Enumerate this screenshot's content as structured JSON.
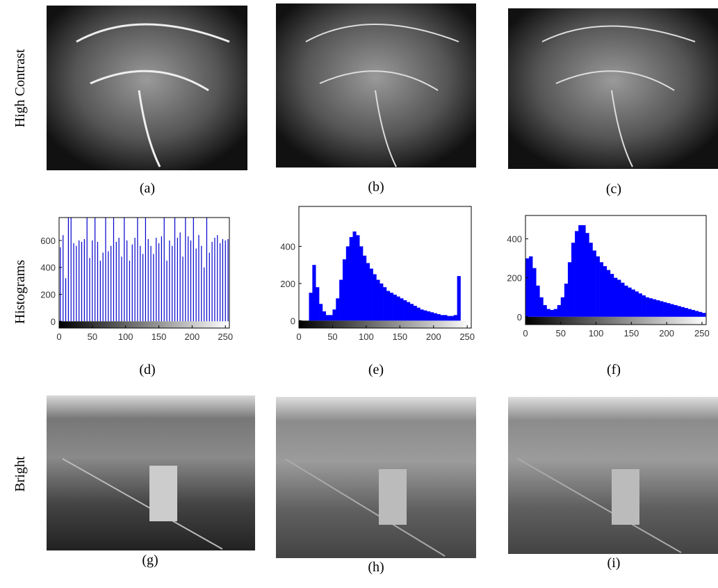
{
  "row_labels": [
    "High Contrast",
    "Histograms",
    "Bright"
  ],
  "captions": [
    "(a)",
    "(b)",
    "(c)",
    "(d)",
    "(e)",
    "(f)",
    "(g)",
    "(h)",
    "(i)"
  ],
  "chart_data": [
    {
      "type": "bar",
      "color": "#0000cc",
      "x": [
        2,
        6,
        10,
        14,
        18,
        22,
        26,
        30,
        34,
        38,
        42,
        46,
        50,
        54,
        58,
        62,
        66,
        70,
        74,
        78,
        82,
        86,
        90,
        94,
        98,
        102,
        106,
        110,
        114,
        118,
        122,
        126,
        130,
        134,
        138,
        142,
        146,
        150,
        154,
        158,
        162,
        166,
        170,
        174,
        178,
        182,
        186,
        190,
        194,
        198,
        202,
        206,
        210,
        214,
        218,
        222,
        226,
        230,
        234,
        238,
        242,
        246,
        250,
        254
      ],
      "values": [
        550,
        640,
        320,
        770,
        770,
        580,
        560,
        600,
        590,
        610,
        770,
        470,
        600,
        770,
        590,
        450,
        510,
        770,
        520,
        560,
        770,
        590,
        620,
        480,
        770,
        600,
        450,
        570,
        620,
        770,
        560,
        500,
        770,
        610,
        560,
        500,
        620,
        580,
        630,
        770,
        450,
        600,
        560,
        770,
        620,
        660,
        480,
        770,
        630,
        600,
        770,
        540,
        640,
        560,
        400,
        770,
        510,
        590,
        620,
        640,
        580,
        610,
        600,
        610
      ],
      "xlim": [
        0,
        256
      ],
      "ylim": [
        -50,
        770
      ],
      "xticks": [
        0,
        50,
        100,
        150,
        200,
        250
      ],
      "yticks": [
        0,
        200,
        400,
        600
      ]
    },
    {
      "type": "histogram",
      "color": "#0000ff",
      "bins": [
        15,
        20,
        25,
        30,
        35,
        40,
        45,
        50,
        55,
        60,
        65,
        70,
        75,
        80,
        85,
        90,
        95,
        100,
        105,
        110,
        115,
        120,
        125,
        130,
        135,
        140,
        145,
        150,
        155,
        160,
        165,
        170,
        175,
        180,
        185,
        190,
        195,
        200,
        205,
        210,
        215,
        220,
        225,
        230,
        235,
        240
      ],
      "values": [
        150,
        300,
        180,
        90,
        50,
        30,
        30,
        60,
        120,
        220,
        330,
        400,
        450,
        480,
        460,
        400,
        350,
        310,
        280,
        250,
        220,
        200,
        180,
        160,
        150,
        140,
        130,
        120,
        110,
        100,
        90,
        80,
        70,
        60,
        55,
        50,
        45,
        40,
        35,
        30,
        30,
        25,
        25,
        30,
        240
      ],
      "xlim": [
        0,
        256
      ],
      "ylim": [
        -40,
        615
      ],
      "xticks": [
        0,
        50,
        100,
        150,
        200,
        250
      ],
      "yticks": [
        0,
        200,
        400
      ]
    },
    {
      "type": "histogram",
      "color": "#0000ff",
      "bins": [
        0,
        5,
        10,
        15,
        20,
        25,
        30,
        35,
        40,
        45,
        50,
        55,
        60,
        65,
        70,
        75,
        80,
        85,
        90,
        95,
        100,
        105,
        110,
        115,
        120,
        125,
        130,
        135,
        140,
        145,
        150,
        155,
        160,
        165,
        170,
        175,
        180,
        185,
        190,
        195,
        200,
        205,
        210,
        215,
        220,
        225,
        230,
        235,
        240,
        245,
        250,
        255
      ],
      "values": [
        300,
        310,
        250,
        160,
        100,
        60,
        40,
        35,
        40,
        60,
        100,
        170,
        280,
        380,
        440,
        470,
        470,
        430,
        380,
        340,
        310,
        280,
        260,
        240,
        220,
        200,
        190,
        175,
        160,
        150,
        140,
        130,
        120,
        110,
        100,
        95,
        90,
        85,
        80,
        75,
        70,
        65,
        60,
        55,
        50,
        45,
        40,
        35,
        30,
        25,
        20
      ],
      "xlim": [
        0,
        256
      ],
      "ylim": [
        -40,
        520
      ],
      "xticks": [
        0,
        50,
        100,
        150,
        200,
        250
      ],
      "yticks": [
        0,
        200,
        400
      ]
    }
  ]
}
